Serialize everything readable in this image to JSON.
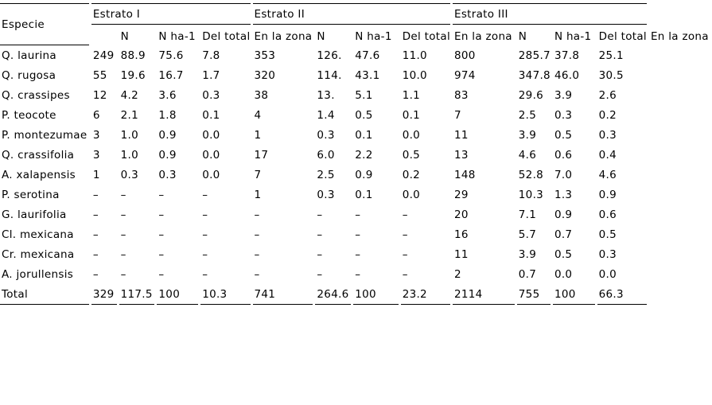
{
  "table": {
    "corner_label": "Especie",
    "groups": [
      {
        "label": "Estrato I"
      },
      {
        "label": "Estrato II"
      },
      {
        "label": "Estrato III"
      }
    ],
    "subheaders": [
      "",
      "N",
      "N ha-1",
      "Del total",
      "En la zona",
      "N",
      "N ha-1",
      "Del total",
      "En la zona",
      "N",
      "N ha-1",
      "Del total",
      "En la zona"
    ],
    "rows": [
      {
        "species": "Q. laurina",
        "values": [
          "249",
          "88.9",
          "75.6",
          "7.8",
          "353",
          "126.",
          "47.6",
          "11.0",
          "800",
          "285.7",
          "37.8",
          "25.1",
          ""
        ]
      },
      {
        "species": "Q. rugosa",
        "values": [
          "55",
          "19.6",
          "16.7",
          "1.7",
          "320",
          "114.",
          "43.1",
          "10.0",
          "974",
          "347.8",
          "46.0",
          "30.5",
          ""
        ]
      },
      {
        "species": "Q. crassipes",
        "values": [
          "12",
          "4.2",
          "3.6",
          "0.3",
          "38",
          "13.",
          "5.1",
          "1.1",
          "83",
          "29.6",
          "3.9",
          "2.6",
          ""
        ]
      },
      {
        "species": "P. teocote",
        "values": [
          "6",
          "2.1",
          "1.8",
          "0.1",
          "4",
          "1.4",
          "0.5",
          "0.1",
          "7",
          "2.5",
          "0.3",
          "0.2",
          ""
        ]
      },
      {
        "species": "P. montezumae",
        "values": [
          "3",
          "1.0",
          "0.9",
          "0.0",
          "1",
          "0.3",
          "0.1",
          "0.0",
          "11",
          "3.9",
          "0.5",
          "0.3",
          ""
        ]
      },
      {
        "species": "Q. crassifolia",
        "values": [
          "3",
          "1.0",
          "0.9",
          "0.0",
          "17",
          "6.0",
          "2.2",
          "0.5",
          "13",
          "4.6",
          "0.6",
          "0.4",
          ""
        ]
      },
      {
        "species": "A. xalapensis",
        "values": [
          "1",
          "0.3",
          "0.3",
          "0.0",
          "7",
          "2.5",
          "0.9",
          "0.2",
          "148",
          "52.8",
          "7.0",
          "4.6",
          ""
        ]
      },
      {
        "species": "P. serotina",
        "values": [
          "–",
          "–",
          "–",
          "–",
          "1",
          "0.3",
          "0.1",
          "0.0",
          "29",
          "10.3",
          "1.3",
          "0.9",
          ""
        ]
      },
      {
        "species": "G. laurifolia",
        "values": [
          "–",
          "–",
          "–",
          "–",
          "–",
          "–",
          "–",
          "–",
          "20",
          "7.1",
          "0.9",
          "0.6",
          ""
        ]
      },
      {
        "species": "Cl. mexicana",
        "values": [
          "–",
          "–",
          "–",
          "–",
          "–",
          "–",
          "–",
          "–",
          "16",
          "5.7",
          "0.7",
          "0.5",
          ""
        ]
      },
      {
        "species": "Cr. mexicana",
        "values": [
          "–",
          "–",
          "–",
          "–",
          "–",
          "–",
          "–",
          "–",
          "11",
          "3.9",
          "0.5",
          "0.3",
          ""
        ]
      },
      {
        "species": "A. jorullensis",
        "values": [
          "–",
          "–",
          "–",
          "–",
          "–",
          "–",
          "–",
          "–",
          "2",
          "0.7",
          "0.0",
          "0.0",
          ""
        ]
      }
    ],
    "total": {
      "species": "Total",
      "values": [
        "329",
        "117.5",
        "100",
        "10.3",
        "741",
        "264.6",
        "100",
        "23.2",
        "2114",
        "755",
        "100",
        "66.3",
        ""
      ]
    }
  }
}
